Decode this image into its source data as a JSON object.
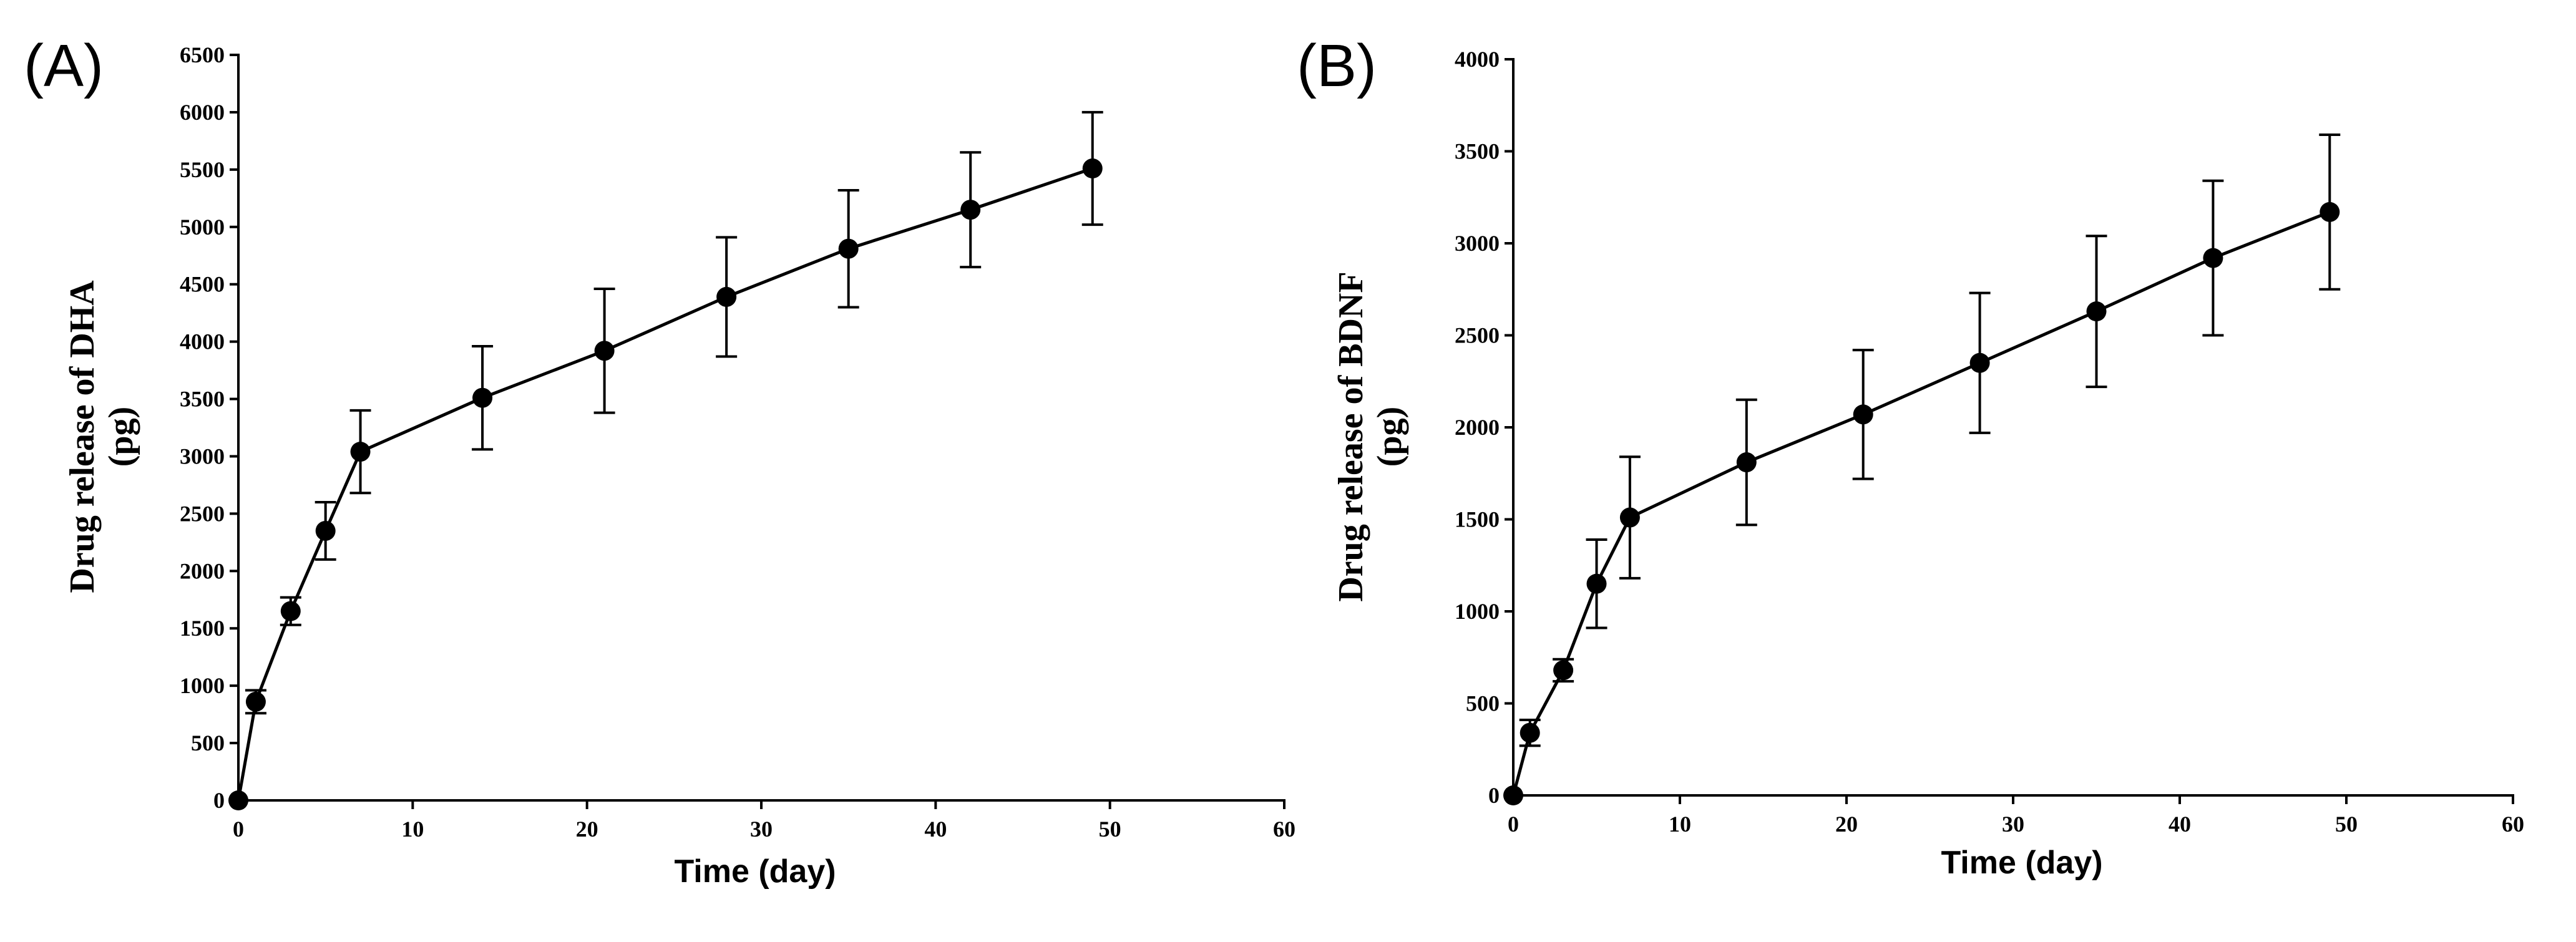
{
  "chart_data": [
    {
      "type": "line",
      "panel_label": "(A)",
      "title": "",
      "xlabel": "Time (day)",
      "ylabel": [
        "Drug release of DHA",
        "(pg)"
      ],
      "xlim": [
        0,
        60
      ],
      "ylim": [
        0,
        6500
      ],
      "xticks": [
        0,
        10,
        20,
        30,
        40,
        50,
        60
      ],
      "yticks": [
        0,
        500,
        1000,
        1500,
        2000,
        2500,
        3000,
        3500,
        4000,
        4500,
        5000,
        5500,
        6000,
        6500
      ],
      "grid": false,
      "series": [
        {
          "name": "DHA",
          "x": [
            0,
            1,
            3,
            5,
            7,
            14,
            21,
            28,
            35,
            42,
            49
          ],
          "y": [
            0,
            860,
            1650,
            2350,
            3040,
            3510,
            3920,
            4390,
            4810,
            5150,
            5510
          ],
          "error": [
            0,
            100,
            120,
            250,
            360,
            450,
            540,
            520,
            510,
            500,
            490
          ]
        }
      ]
    },
    {
      "type": "line",
      "panel_label": "(B)",
      "title": "",
      "xlabel": "Time (day)",
      "ylabel": [
        "Drug release of BDNF",
        "(pg)"
      ],
      "xlim": [
        0,
        60
      ],
      "ylim": [
        0,
        4000
      ],
      "xticks": [
        0,
        10,
        20,
        30,
        40,
        50,
        60
      ],
      "yticks": [
        0,
        500,
        1000,
        1500,
        2000,
        2500,
        3000,
        3500,
        4000
      ],
      "grid": false,
      "series": [
        {
          "name": "BDNF",
          "x": [
            0,
            1,
            3,
            5,
            7,
            14,
            21,
            28,
            35,
            42,
            49
          ],
          "y": [
            0,
            340,
            680,
            1150,
            1510,
            1810,
            2070,
            2350,
            2630,
            2920,
            3170
          ],
          "error": [
            0,
            70,
            60,
            240,
            330,
            340,
            350,
            380,
            410,
            420,
            420
          ]
        }
      ]
    }
  ]
}
